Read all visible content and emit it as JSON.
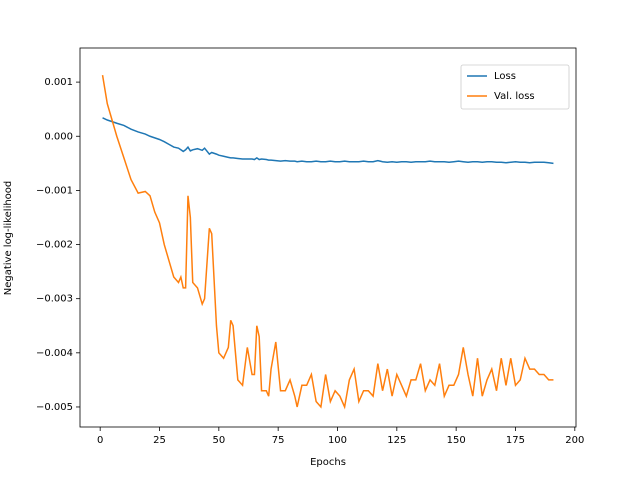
{
  "chart_data": {
    "type": "line",
    "xlabel": "Epochs",
    "ylabel": "Negative log-likelihood",
    "x": [
      1,
      3,
      5,
      7,
      10,
      13,
      16,
      19,
      21,
      23,
      25,
      27,
      29,
      31,
      33,
      34,
      35,
      36,
      37,
      38,
      39,
      41,
      43,
      44,
      46,
      47,
      49,
      50,
      52,
      54,
      55,
      56,
      58,
      60,
      62,
      64,
      65,
      66,
      67,
      68,
      70,
      71,
      72,
      74,
      76,
      78,
      80,
      82,
      83,
      85,
      87,
      89,
      91,
      93,
      95,
      97,
      99,
      101,
      103,
      105,
      107,
      109,
      111,
      113,
      115,
      117,
      119,
      121,
      123,
      125,
      127,
      129,
      131,
      133,
      135,
      137,
      139,
      141,
      143,
      145,
      147,
      149,
      151,
      153,
      155,
      157,
      159,
      161,
      163,
      165,
      167,
      169,
      171,
      173,
      175,
      177,
      179,
      181,
      183,
      185,
      187,
      189,
      191
    ],
    "series": [
      {
        "name": "Loss",
        "color": "#1f77b4",
        "values": [
          0.00034,
          0.0003,
          0.00027,
          0.00024,
          0.0002,
          0.00013,
          8e-05,
          4e-05,
          0.0,
          -3e-05,
          -6e-05,
          -0.0001,
          -0.00015,
          -0.0002,
          -0.00022,
          -0.00025,
          -0.00028,
          -0.00025,
          -0.0002,
          -0.00027,
          -0.00025,
          -0.00023,
          -0.00026,
          -0.00022,
          -0.00033,
          -0.0003,
          -0.00033,
          -0.00035,
          -0.00037,
          -0.00039,
          -0.0004,
          -0.0004,
          -0.00041,
          -0.00042,
          -0.00042,
          -0.00042,
          -0.00043,
          -0.0004,
          -0.00043,
          -0.00042,
          -0.00043,
          -0.00044,
          -0.00044,
          -0.00045,
          -0.00046,
          -0.00045,
          -0.00046,
          -0.00046,
          -0.00047,
          -0.00046,
          -0.00047,
          -0.00047,
          -0.00046,
          -0.00047,
          -0.00047,
          -0.00046,
          -0.00047,
          -0.00047,
          -0.00046,
          -0.00047,
          -0.00047,
          -0.00047,
          -0.00046,
          -0.00047,
          -0.00047,
          -0.00045,
          -0.00047,
          -0.00048,
          -0.00047,
          -0.00048,
          -0.00047,
          -0.00047,
          -0.00048,
          -0.00047,
          -0.00047,
          -0.00047,
          -0.00046,
          -0.00047,
          -0.00047,
          -0.00047,
          -0.00048,
          -0.00047,
          -0.00046,
          -0.00047,
          -0.00048,
          -0.00047,
          -0.00047,
          -0.00048,
          -0.00047,
          -0.00047,
          -0.00048,
          -0.00048,
          -0.00049,
          -0.00048,
          -0.00047,
          -0.00048,
          -0.00048,
          -0.00049,
          -0.00048,
          -0.00048,
          -0.00048,
          -0.00049,
          -0.0005
        ]
      },
      {
        "name": "Val. loss",
        "color": "#ff7f0e",
        "values": [
          0.00113,
          0.0006,
          0.0003,
          0.0,
          -0.0004,
          -0.0008,
          -0.00105,
          -0.00102,
          -0.0011,
          -0.0014,
          -0.0016,
          -0.002,
          -0.0023,
          -0.0026,
          -0.0027,
          -0.0026,
          -0.0028,
          -0.0028,
          -0.0011,
          -0.0015,
          -0.0027,
          -0.0028,
          -0.0031,
          -0.003,
          -0.0017,
          -0.0018,
          -0.0035,
          -0.004,
          -0.0041,
          -0.0039,
          -0.0034,
          -0.0035,
          -0.0045,
          -0.0046,
          -0.0039,
          -0.0044,
          -0.0044,
          -0.0035,
          -0.0037,
          -0.0047,
          -0.0047,
          -0.0048,
          -0.0043,
          -0.0038,
          -0.0047,
          -0.0047,
          -0.0045,
          -0.0048,
          -0.005,
          -0.0046,
          -0.0046,
          -0.0044,
          -0.0049,
          -0.005,
          -0.0044,
          -0.0049,
          -0.0047,
          -0.0048,
          -0.005,
          -0.0045,
          -0.0043,
          -0.0049,
          -0.0047,
          -0.0047,
          -0.0048,
          -0.0042,
          -0.0047,
          -0.0043,
          -0.0048,
          -0.0044,
          -0.0046,
          -0.0048,
          -0.0045,
          -0.0045,
          -0.0042,
          -0.0047,
          -0.0045,
          -0.0046,
          -0.0042,
          -0.0048,
          -0.0046,
          -0.0046,
          -0.0044,
          -0.0039,
          -0.0044,
          -0.0048,
          -0.0041,
          -0.0048,
          -0.0045,
          -0.0043,
          -0.0047,
          -0.0041,
          -0.0046,
          -0.0041,
          -0.0046,
          -0.0045,
          -0.0041,
          -0.0043,
          -0.0043,
          -0.0044,
          -0.0044,
          -0.0045,
          -0.0045
        ]
      }
    ],
    "xlim": [
      -8.5,
      200.5
    ],
    "xticks": [
      0,
      25,
      50,
      75,
      100,
      125,
      150,
      175,
      200
    ],
    "ylim": [
      -0.00537,
      0.00163
    ],
    "yticks": [
      {
        "value": -0.005,
        "label": "−0.005"
      },
      {
        "value": -0.004,
        "label": "−0.004"
      },
      {
        "value": -0.003,
        "label": "−0.003"
      },
      {
        "value": -0.002,
        "label": "−0.002"
      },
      {
        "value": -0.001,
        "label": "−0.001"
      },
      {
        "value": 0,
        "label": "0.000"
      },
      0.001
    ],
    "legend": "upper right"
  }
}
